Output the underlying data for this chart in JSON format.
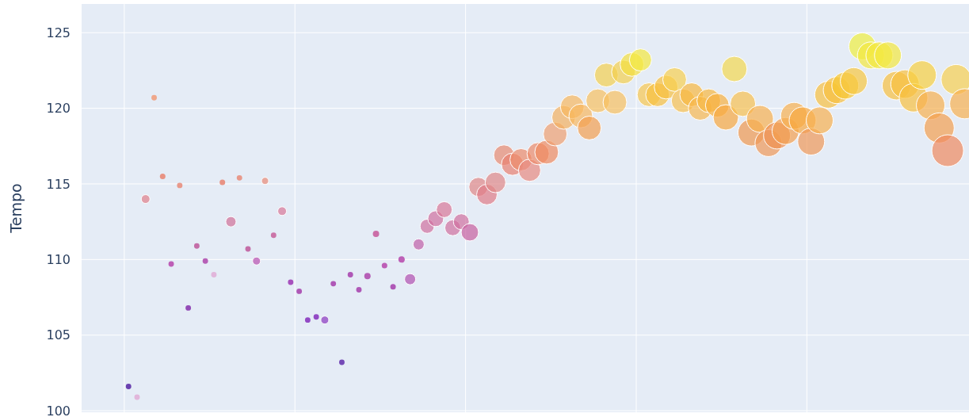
{
  "chart_data": {
    "type": "bubble",
    "ylabel": "Tempo",
    "ylim": [
      99.9,
      126.9
    ],
    "yticks": [
      100,
      105,
      110,
      115,
      120,
      125
    ],
    "grid": true,
    "marker": "circle",
    "categories": [
      null,
      null,
      null,
      null,
      null,
      null,
      null,
      null,
      null,
      null,
      null,
      null,
      null,
      null,
      null,
      null,
      null,
      null,
      null,
      null,
      null,
      null,
      null,
      null,
      null,
      null,
      null,
      null,
      null,
      null,
      null,
      null,
      null,
      null,
      null,
      null,
      null,
      null,
      null,
      null,
      null,
      null,
      null,
      null,
      null,
      null,
      null,
      null,
      null,
      null,
      null,
      null,
      null,
      null,
      null,
      null,
      null,
      null,
      null,
      null,
      null,
      null,
      null,
      null,
      null,
      null,
      null,
      null,
      null,
      null,
      null,
      null,
      null,
      null,
      null,
      null,
      null,
      null,
      null,
      null,
      null,
      null,
      null,
      null,
      null,
      null,
      null,
      null,
      null,
      null,
      null,
      null,
      null,
      null,
      null,
      null,
      null,
      null,
      null,
      null,
      null,
      null,
      null,
      null
    ],
    "values": [
      null,
      null,
      null,
      null,
      null,
      101.6,
      100.9,
      114.0,
      120.7,
      115.5,
      109.7,
      114.9,
      106.8,
      110.9,
      109.9,
      109.0,
      115.1,
      112.5,
      115.4,
      110.7,
      109.9,
      115.2,
      111.6,
      113.2,
      108.5,
      107.9,
      106.0,
      106.2,
      106.0,
      108.4,
      103.2,
      109.0,
      108.0,
      108.9,
      111.7,
      109.6,
      108.2,
      110.0,
      108.7,
      111.0,
      112.2,
      112.7,
      113.3,
      112.1,
      112.5,
      111.8,
      114.8,
      114.3,
      115.1,
      116.9,
      116.3,
      116.6,
      115.9,
      117.0,
      117.1,
      118.3,
      119.4,
      120.1,
      119.5,
      118.7,
      120.5,
      122.2,
      120.4,
      122.4,
      122.9,
      123.2,
      120.9,
      120.9,
      121.4,
      121.9,
      120.5,
      120.9,
      120.0,
      120.5,
      120.2,
      119.4,
      122.6,
      120.3,
      118.4,
      119.3,
      117.7,
      118.2,
      118.5,
      119.5,
      119.2,
      117.8,
      119.2,
      120.9,
      121.2,
      121.5,
      121.8,
      124.1,
      123.5,
      123.5,
      123.5,
      121.5,
      121.6,
      120.7,
      122.2,
      120.2,
      118.7,
      117.2,
      121.9,
      120.3
    ],
    "sizes": [
      null,
      null,
      null,
      null,
      null,
      0.03,
      0.03,
      0.076,
      0.03,
      0.031,
      0.03,
      0.03,
      0.03,
      0.03,
      0.03,
      0.03,
      0.031,
      0.106,
      0.03,
      0.03,
      0.063,
      0.051,
      0.03,
      0.076,
      0.03,
      0.03,
      0.03,
      0.03,
      0.063,
      0.03,
      0.03,
      0.03,
      0.03,
      0.04,
      0.04,
      0.031,
      0.031,
      0.04,
      0.123,
      0.123,
      0.2,
      0.25,
      0.25,
      0.25,
      0.25,
      0.3,
      0.36,
      0.42,
      0.42,
      0.42,
      0.49,
      0.49,
      0.49,
      0.49,
      0.56,
      0.56,
      0.56,
      0.56,
      0.56,
      0.56,
      0.56,
      0.56,
      0.56,
      0.56,
      0.56,
      0.49,
      0.56,
      0.56,
      0.56,
      0.56,
      0.56,
      0.56,
      0.56,
      0.56,
      0.56,
      0.64,
      0.64,
      0.64,
      0.72,
      0.72,
      0.72,
      0.72,
      0.72,
      0.72,
      0.72,
      0.72,
      0.72,
      0.72,
      0.72,
      0.72,
      0.72,
      0.72,
      0.72,
      0.72,
      0.72,
      0.81,
      0.81,
      0.81,
      0.81,
      0.81,
      0.9,
      1,
      0.9,
      0.9
    ],
    "colors": [
      null,
      null,
      null,
      null,
      null,
      "#5c2fa8",
      "#e0b0d8",
      "#e07f8a",
      "#f0a080",
      "#e88a78",
      "#b84fb0",
      "#e89080",
      "#8a3ab0",
      "#c060a0",
      "#b050b0",
      "#e0b0d8",
      "#e88a78",
      "#d07098",
      "#e89080",
      "#c060a0",
      "#b850b0",
      "#e88a78",
      "#c868a0",
      "#d87898",
      "#a040b8",
      "#a848b0",
      "#8a38c0",
      "#8a38c0",
      "#8a38c0",
      "#a848b0",
      "#6838b0",
      "#a848b0",
      "#a848b0",
      "#b050b0",
      "#c860a0",
      "#b850b0",
      "#a848b0",
      "#b850b0",
      "#b050b0",
      "#c060a8",
      "#d070a0",
      "#d070a0",
      "#d87898",
      "#d070a0",
      "#d070a0",
      "#c860a0",
      "#e08888",
      "#e07c88",
      "#e08888",
      "#e88a70",
      "#e88070",
      "#ec8a6a",
      "#e88a80",
      "#ec8a6a",
      "#f08a60",
      "#f0a070",
      "#f4b060",
      "#f8b860",
      "#f8b860",
      "#f4a050",
      "#f8c060",
      "#f4d050",
      "#f8c060",
      "#f4d050",
      "#f4e040",
      "#f4e840",
      "#f8c850",
      "#f8c040",
      "#f8c040",
      "#f8d050",
      "#f8c050",
      "#f8b840",
      "#f8b850",
      "#f8b840",
      "#f8b040",
      "#f8a840",
      "#f4d850",
      "#f8c050",
      "#f09850",
      "#f8b050",
      "#f09858",
      "#f09050",
      "#f4a050",
      "#f8b050",
      "#f8a840",
      "#f09858",
      "#f8b050",
      "#f8c040",
      "#f8c040",
      "#f8c830",
      "#f8c840",
      "#f0f040",
      "#f4e840",
      "#f4e840",
      "#f4e840",
      "#f8c040",
      "#f8c040",
      "#f8c040",
      "#f8d040",
      "#f8b050",
      "#f4a050",
      "#f08a60",
      "#f8d050",
      "#f8b050"
    ]
  }
}
